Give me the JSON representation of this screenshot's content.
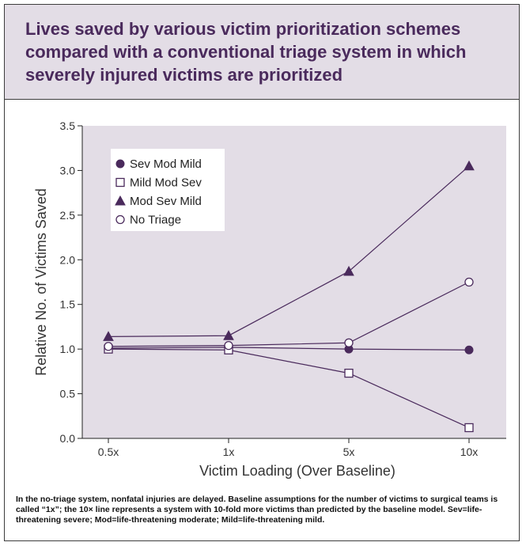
{
  "title": "Lives saved by various victim prioritization schemes compared with a conventional triage system in which severely injured victims are prioritized",
  "caption": "In the no-triage system, nonfatal injuries are delayed. Baseline assumptions for the number of victims to surgical teams is called “1x”; the 10× line represents a system with 10-fold more victims than predicted by the baseline model. Sev=life-threatening severe; Mod=life-threatening moderate; Mild=life-threatening mild.",
  "colors": {
    "accent": "#4a2a5c",
    "plot_bg": "#e3dde6",
    "title_bg": "#e3dde6"
  },
  "chart_data": {
    "type": "line",
    "categories": [
      "0.5x",
      "1x",
      "5x",
      "10x"
    ],
    "xlabel": "Victim Loading (Over Baseline)",
    "ylabel": "Relative No. of Victims Saved",
    "ylim": [
      0,
      3.5
    ],
    "yticks": [
      "0.0",
      "0.5",
      "1.0",
      "1.5",
      "2.0",
      "2.5",
      "3.0",
      "3.5"
    ],
    "legend_position": "top-left",
    "grid": false,
    "series": [
      {
        "name": "Sev Mod Mild",
        "marker": "filled-circle",
        "values": [
          1.01,
          1.02,
          1.0,
          0.99
        ]
      },
      {
        "name": "Mild Mod Sev",
        "marker": "open-square",
        "values": [
          1.0,
          0.99,
          0.73,
          0.12
        ]
      },
      {
        "name": "Mod Sev Mild",
        "marker": "filled-triangle",
        "values": [
          1.14,
          1.15,
          1.87,
          3.05
        ]
      },
      {
        "name": "No Triage",
        "marker": "open-circle",
        "values": [
          1.03,
          1.04,
          1.07,
          1.75
        ]
      }
    ]
  }
}
